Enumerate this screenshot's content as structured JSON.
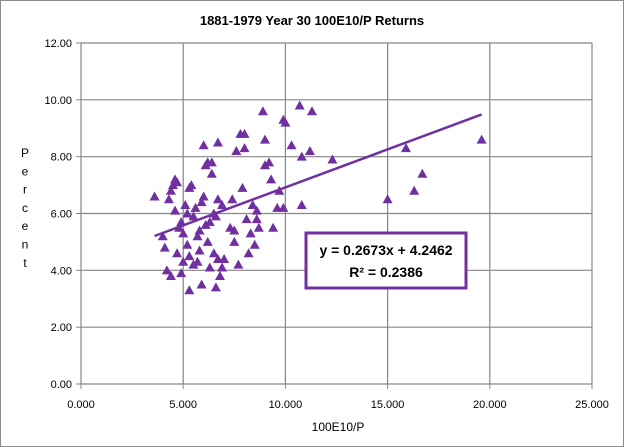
{
  "chart_data": {
    "type": "scatter",
    "title": "1881-1979 Year 30 100E10/P Returns",
    "xlabel": "100E10/P",
    "ylabel": "Percent",
    "xlim": [
      0,
      25
    ],
    "ylim": [
      0,
      12
    ],
    "x_ticks": [
      "0.000",
      "5.000",
      "10.000",
      "15.000",
      "20.000",
      "25.000"
    ],
    "y_ticks": [
      "0.00",
      "2.00",
      "4.00",
      "6.00",
      "8.00",
      "10.00",
      "12.00"
    ],
    "grid": true,
    "marker": "triangle",
    "marker_color": "#7030a0",
    "trendline": {
      "slope": 0.2673,
      "intercept": 4.2462,
      "x_range": [
        3.6,
        19.6
      ],
      "color": "#7030a0",
      "equation": "y = 0.2673x + 4.2462",
      "r_squared": "R² = 0.2386"
    },
    "points": [
      [
        3.6,
        6.6
      ],
      [
        4.0,
        5.2
      ],
      [
        4.1,
        4.8
      ],
      [
        4.2,
        4.0
      ],
      [
        4.3,
        6.5
      ],
      [
        4.4,
        3.8
      ],
      [
        4.4,
        6.8
      ],
      [
        4.5,
        7.0
      ],
      [
        4.6,
        7.2
      ],
      [
        4.6,
        6.1
      ],
      [
        4.7,
        4.6
      ],
      [
        4.7,
        7.1
      ],
      [
        4.8,
        5.5
      ],
      [
        4.9,
        5.7
      ],
      [
        4.9,
        3.9
      ],
      [
        5.0,
        5.3
      ],
      [
        5.0,
        4.3
      ],
      [
        5.1,
        6.3
      ],
      [
        5.2,
        4.9
      ],
      [
        5.2,
        6.0
      ],
      [
        5.3,
        4.5
      ],
      [
        5.3,
        6.9
      ],
      [
        5.3,
        3.3
      ],
      [
        5.4,
        7.0
      ],
      [
        5.5,
        5.9
      ],
      [
        5.5,
        4.2
      ],
      [
        5.6,
        6.2
      ],
      [
        5.7,
        5.2
      ],
      [
        5.7,
        4.3
      ],
      [
        5.8,
        4.7
      ],
      [
        5.8,
        5.4
      ],
      [
        5.9,
        6.4
      ],
      [
        5.9,
        3.5
      ],
      [
        6.0,
        6.6
      ],
      [
        6.0,
        8.4
      ],
      [
        6.1,
        5.6
      ],
      [
        6.1,
        7.7
      ],
      [
        6.2,
        7.8
      ],
      [
        6.2,
        5.0
      ],
      [
        6.3,
        4.1
      ],
      [
        6.3,
        5.7
      ],
      [
        6.4,
        7.4
      ],
      [
        6.4,
        7.8
      ],
      [
        6.5,
        6.0
      ],
      [
        6.5,
        4.6
      ],
      [
        6.6,
        3.4
      ],
      [
        6.6,
        5.9
      ],
      [
        6.7,
        8.5
      ],
      [
        6.7,
        4.4
      ],
      [
        6.7,
        6.5
      ],
      [
        6.8,
        3.8
      ],
      [
        6.9,
        4.1
      ],
      [
        6.9,
        6.3
      ],
      [
        7.0,
        4.4
      ],
      [
        7.3,
        5.5
      ],
      [
        7.4,
        6.5
      ],
      [
        7.5,
        5.0
      ],
      [
        7.5,
        5.4
      ],
      [
        7.6,
        8.2
      ],
      [
        7.7,
        4.2
      ],
      [
        7.8,
        8.8
      ],
      [
        7.9,
        6.9
      ],
      [
        8.0,
        8.8
      ],
      [
        8.0,
        8.3
      ],
      [
        8.1,
        5.8
      ],
      [
        8.2,
        4.6
      ],
      [
        8.3,
        5.3
      ],
      [
        8.4,
        6.3
      ],
      [
        8.5,
        4.9
      ],
      [
        8.6,
        5.8
      ],
      [
        8.6,
        6.1
      ],
      [
        8.7,
        5.5
      ],
      [
        8.9,
        9.6
      ],
      [
        9.0,
        7.7
      ],
      [
        9.0,
        8.6
      ],
      [
        9.2,
        7.8
      ],
      [
        9.3,
        7.2
      ],
      [
        9.4,
        5.5
      ],
      [
        9.6,
        6.2
      ],
      [
        9.7,
        6.8
      ],
      [
        9.9,
        6.2
      ],
      [
        9.9,
        9.3
      ],
      [
        10.0,
        9.2
      ],
      [
        10.3,
        8.4
      ],
      [
        10.7,
        9.8
      ],
      [
        10.8,
        6.3
      ],
      [
        10.8,
        8.0
      ],
      [
        11.2,
        8.2
      ],
      [
        11.3,
        9.6
      ],
      [
        12.3,
        7.9
      ],
      [
        15.0,
        6.5
      ],
      [
        15.9,
        8.3
      ],
      [
        16.3,
        6.8
      ],
      [
        16.7,
        7.4
      ],
      [
        19.6,
        8.6
      ]
    ]
  }
}
